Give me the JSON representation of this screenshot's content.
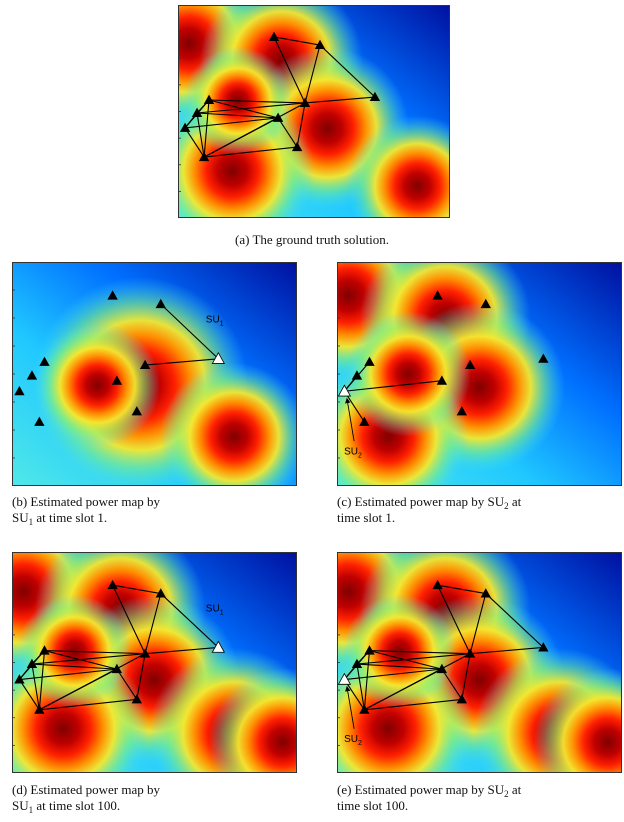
{
  "panels": [
    {
      "caption": [
        [
          "(a) The ground truth solution."
        ]
      ]
    },
    {
      "caption": [
        [
          "(b) Estimated power map by"
        ],
        [
          "SU",
          "1",
          " at time slot 1."
        ]
      ],
      "su_label": [
        "SU",
        "1"
      ]
    },
    {
      "caption": [
        [
          "(c) Estimated power map by SU",
          "2",
          " at"
        ],
        [
          "time slot 1."
        ]
      ],
      "su_label": [
        "SU",
        "2"
      ]
    },
    {
      "caption": [
        [
          "(d) Estimated power map by"
        ],
        [
          "SU",
          "1",
          " at time slot 100."
        ]
      ],
      "su_label": [
        "SU",
        "1"
      ]
    },
    {
      "caption": [
        [
          "(e) Estimated power map by SU",
          "2",
          " at"
        ],
        [
          "time slot 100."
        ]
      ],
      "su_label": [
        "SU",
        "2"
      ]
    }
  ]
}
